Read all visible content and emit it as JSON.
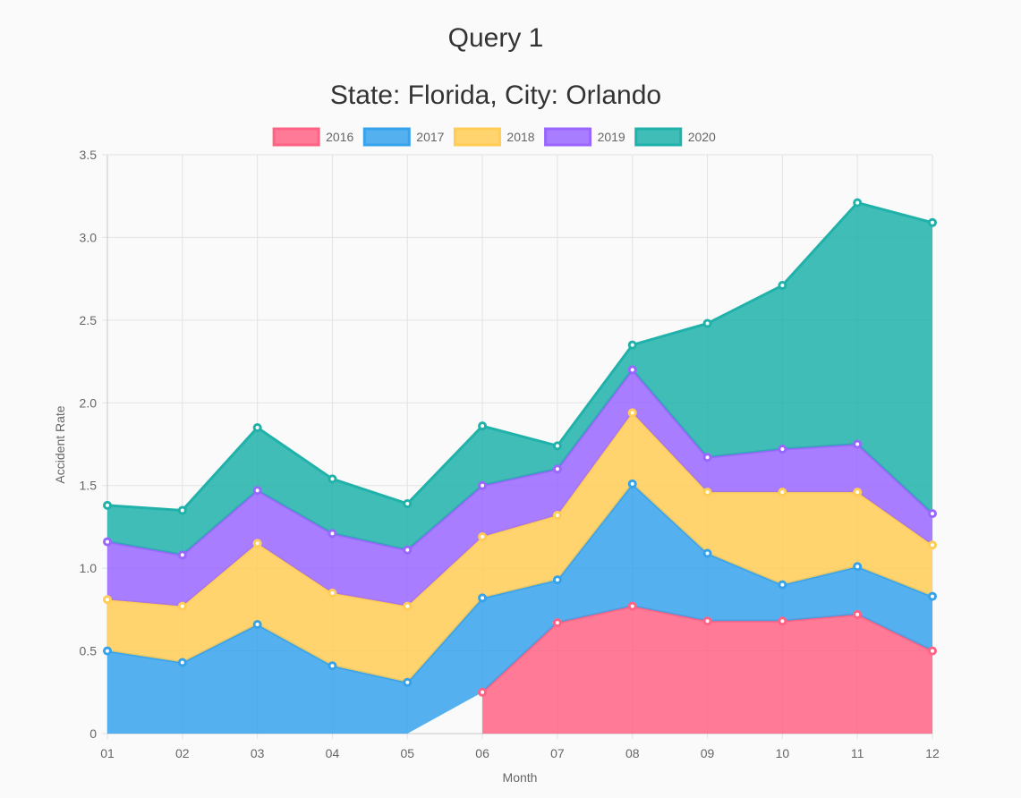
{
  "chart_data": {
    "type": "area",
    "stacked": true,
    "title": "Query 1",
    "subtitle": "State: Florida, City: Orlando",
    "xlabel": "Month",
    "ylabel": "Accident Rate",
    "categories": [
      "01",
      "02",
      "03",
      "04",
      "05",
      "06",
      "07",
      "08",
      "09",
      "10",
      "11",
      "12"
    ],
    "ylim": [
      0,
      3.5
    ],
    "yticks": [
      "0",
      "0.5",
      "1.0",
      "1.5",
      "2.0",
      "2.5",
      "3.0",
      "3.5"
    ],
    "ytick_values": [
      0,
      0.5,
      1.0,
      1.5,
      2.0,
      2.5,
      3.0,
      3.5
    ],
    "grid": true,
    "legend_position": "top",
    "series": [
      {
        "name": "2016",
        "color": "#ff6384",
        "values": [
          null,
          null,
          null,
          null,
          null,
          0.25,
          0.67,
          0.77,
          0.68,
          0.68,
          0.72,
          0.5
        ]
      },
      {
        "name": "2017",
        "color": "#36a2eb",
        "values": [
          0.5,
          0.43,
          0.66,
          0.41,
          0.31,
          0.57,
          0.26,
          0.74,
          0.41,
          0.22,
          0.29,
          0.33
        ]
      },
      {
        "name": "2018",
        "color": "#ffcd56",
        "values": [
          0.31,
          0.34,
          0.49,
          0.44,
          0.46,
          0.37,
          0.39,
          0.43,
          0.37,
          0.56,
          0.45,
          0.31
        ]
      },
      {
        "name": "2019",
        "color": "#9966ff",
        "values": [
          0.35,
          0.31,
          0.32,
          0.36,
          0.34,
          0.31,
          0.28,
          0.26,
          0.21,
          0.26,
          0.29,
          0.19
        ]
      },
      {
        "name": "2020",
        "color": "#20b2aa",
        "values": [
          0.22,
          0.27,
          0.38,
          0.33,
          0.28,
          0.36,
          0.14,
          0.15,
          0.81,
          0.99,
          1.46,
          1.76
        ]
      }
    ]
  }
}
